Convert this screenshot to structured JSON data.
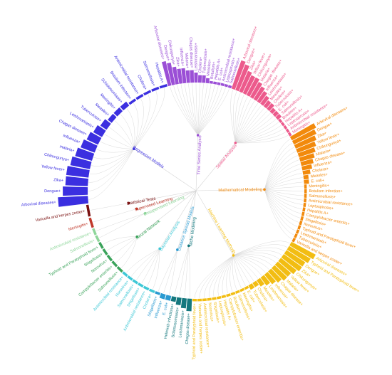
{
  "chart_data": {
    "type": "radial-dendrogram-bar",
    "title": "",
    "root_label": "",
    "methods": [
      {
        "name": "Time Series Analysis",
        "color": "#9b4fd6",
        "start": -105,
        "end": -71,
        "leaves": [
          {
            "label": "Arboviral diseases",
            "value": 10
          },
          {
            "label": "Dengue",
            "value": 9
          },
          {
            "label": "Chikungunya",
            "value": 7
          },
          {
            "label": "Zika",
            "value": 6
          },
          {
            "label": "Influenza",
            "value": 6
          },
          {
            "label": "Malaria",
            "value": 5
          },
          {
            "label": "Chagas disease",
            "value": 5
          },
          {
            "label": "Leishmaniasis",
            "value": 4
          },
          {
            "label": "Cholera",
            "value": 3
          },
          {
            "label": "Tuberculosis",
            "value": 3
          },
          {
            "label": "Measles",
            "value": 2
          },
          {
            "label": "Botulism",
            "value": 1
          },
          {
            "label": "Hepatitis A",
            "value": 1
          },
          {
            "label": "E. coli",
            "value": 1
          },
          {
            "label": "Antimicrobial resistance",
            "value": 1
          },
          {
            "label": "Leptospirosis",
            "value": 1
          },
          {
            "label": "Salmonellosis",
            "value": 1
          }
        ]
      },
      {
        "name": "Spatial Analysis",
        "color": "#ec5a8c",
        "start": -71,
        "end": -30,
        "leaves": [
          {
            "label": "Arboviral diseases",
            "value": 12
          },
          {
            "label": "Dengue",
            "value": 11
          },
          {
            "label": "Zika",
            "value": 9
          },
          {
            "label": "Yellow fever",
            "value": 8
          },
          {
            "label": "Chikungunya",
            "value": 8
          },
          {
            "label": "Malaria",
            "value": 7
          },
          {
            "label": "Chagas disease",
            "value": 6
          },
          {
            "label": "Influenza",
            "value": 5
          },
          {
            "label": "Leishmaniasis",
            "value": 4
          },
          {
            "label": "Measles",
            "value": 3
          },
          {
            "label": "Cholera",
            "value": 3
          },
          {
            "label": "Tuberculosis",
            "value": 2
          },
          {
            "label": "E. coli",
            "value": 2
          },
          {
            "label": "Salmonellosis",
            "value": 2
          },
          {
            "label": "Botulism",
            "value": 1
          },
          {
            "label": "Hepatitis A",
            "value": 1
          },
          {
            "label": "Leptospirosis",
            "value": 1
          },
          {
            "label": "Antimicrobial resistance",
            "value": 1
          },
          {
            "label": "Meningitis",
            "value": 1
          }
        ]
      },
      {
        "name": "Mathematical Modeling",
        "color": "#f28a0c",
        "start": -30,
        "end": 28,
        "leaves": [
          {
            "label": "Arboviral diseases",
            "value": 11
          },
          {
            "label": "Dengue",
            "value": 10
          },
          {
            "label": "Zika",
            "value": 9
          },
          {
            "label": "Yellow fever",
            "value": 8
          },
          {
            "label": "Chikungunya",
            "value": 7
          },
          {
            "label": "Malaria",
            "value": 6
          },
          {
            "label": "Chagas disease",
            "value": 5
          },
          {
            "label": "Influenza",
            "value": 4
          },
          {
            "label": "Cholera",
            "value": 3
          },
          {
            "label": "Measles",
            "value": 2
          },
          {
            "label": "E. coli",
            "value": 2
          },
          {
            "label": "Meningitis",
            "value": 1
          },
          {
            "label": "Botulism infection",
            "value": 1
          },
          {
            "label": "Salmonellosis",
            "value": 1
          },
          {
            "label": "Antimicrobial resistance",
            "value": 1
          },
          {
            "label": "Leptospirosis",
            "value": 1
          },
          {
            "label": "Hepatitis A",
            "value": 1
          },
          {
            "label": "Campylobacter enteritis",
            "value": 1
          },
          {
            "label": "Shigellosis",
            "value": 1
          },
          {
            "label": "Norovirus",
            "value": 1
          },
          {
            "label": "Typhoid and Paratyphoid fever",
            "value": 1
          },
          {
            "label": "Leishmaniasis",
            "value": 1
          },
          {
            "label": "Tuberculosis",
            "value": 1
          },
          {
            "label": "Varicella and herpes zoster",
            "value": 1
          }
        ]
      },
      {
        "name": "Machine Learning Methods",
        "color": "#f2bd12",
        "start": 28,
        "end": 92,
        "leaves": [
          {
            "label": "Arboviral diseases",
            "value": 11
          },
          {
            "label": "Typhoid and Paratyphoid fever",
            "value": 10
          },
          {
            "label": "Dengue",
            "value": 9
          },
          {
            "label": "Zika",
            "value": 9
          },
          {
            "label": "Chikungunya",
            "value": 8
          },
          {
            "label": "Yellow fever",
            "value": 7
          },
          {
            "label": "Malaria",
            "value": 7
          },
          {
            "label": "Chagas disease",
            "value": 6
          },
          {
            "label": "Influenza",
            "value": 5
          },
          {
            "label": "Leishmaniasis",
            "value": 4
          },
          {
            "label": "Measles",
            "value": 3
          },
          {
            "label": "Cholera",
            "value": 2
          },
          {
            "label": "Tuberculosis",
            "value": 2
          },
          {
            "label": "E. coli",
            "value": 1
          },
          {
            "label": "Meningitis",
            "value": 1
          },
          {
            "label": "Salmonellosis",
            "value": 1
          },
          {
            "label": "Botulism",
            "value": 1
          },
          {
            "label": "Campylobacter enteritis",
            "value": 1
          },
          {
            "label": "Hepatitis A",
            "value": 1
          },
          {
            "label": "Leptospirosis",
            "value": 1
          },
          {
            "label": "Shigellosis",
            "value": 1
          },
          {
            "label": "Norovirus",
            "value": 1
          },
          {
            "label": "Antimicrobial resistance",
            "value": 1
          },
          {
            "label": "Varicella and herpes zoster",
            "value": 1
          },
          {
            "label": "Typhoid and Paratyphoid fever",
            "value": 1
          }
        ]
      },
      {
        "name": "Niche Modeling",
        "color": "#14787e",
        "start": 92,
        "end": 103,
        "leaves": [
          {
            "label": "Chagas disease",
            "value": 5
          },
          {
            "label": "Leishmaniasis",
            "value": 4
          },
          {
            "label": "Schistosomiasis",
            "value": 3
          },
          {
            "label": "Helminth infections",
            "value": 2
          }
        ]
      },
      {
        "name": "Distance Spread Models",
        "color": "#2a9ad1",
        "start": 103,
        "end": 112,
        "leaves": [
          {
            "label": "E. coli",
            "value": 2
          },
          {
            "label": "Influenza",
            "value": 2
          },
          {
            "label": "Shigellosis",
            "value": 1
          }
        ]
      },
      {
        "name": "Bayesian Analysis",
        "color": "#3ec8d6",
        "start": 112,
        "end": 132,
        "leaves": [
          {
            "label": "Cholera",
            "value": 1
          },
          {
            "label": "Antimicrobial resistance",
            "value": 1
          },
          {
            "label": "Shigellosis",
            "value": 1
          },
          {
            "label": "Salmonellosis",
            "value": 1
          },
          {
            "label": "Norovirus",
            "value": 1
          },
          {
            "label": "Antimicrobial resistance",
            "value": 1
          }
        ]
      },
      {
        "name": "Neural Network",
        "color": "#3aa35a",
        "start": 132,
        "end": 152,
        "leaves": [
          {
            "label": "Salmonellosis",
            "value": 1
          },
          {
            "label": "Campylobacter enteritis",
            "value": 1
          },
          {
            "label": "Norovirus",
            "value": 1
          },
          {
            "label": "Shigellosis",
            "value": 1
          },
          {
            "label": "Typhoid and Paratyphoid fever",
            "value": 1
          }
        ]
      },
      {
        "name": "Unsupervised Learning",
        "color": "#8ed69a",
        "start": 152,
        "end": 160,
        "leaves": [
          {
            "label": "Salmonellosis",
            "value": 1
          },
          {
            "label": "Antimicrobial resistance",
            "value": 1
          }
        ]
      },
      {
        "name": "Supervised Learning",
        "color": "#c0392b",
        "start": 160,
        "end": 166,
        "leaves": [
          {
            "label": "Meningitis",
            "value": 1
          }
        ]
      },
      {
        "name": "Statistical Tests",
        "color": "#7a1010",
        "start": 166,
        "end": 173,
        "leaves": [
          {
            "label": "Varicella and herpes zoster",
            "value": 1
          }
        ]
      },
      {
        "name": "Regression Models",
        "color": "#3b2fe0",
        "start": 173,
        "end": 255,
        "leaves": [
          {
            "label": "Arboviral diseases",
            "value": 12
          },
          {
            "label": "Dengue",
            "value": 10
          },
          {
            "label": "Zika",
            "value": 9
          },
          {
            "label": "Yellow fever",
            "value": 9
          },
          {
            "label": "Chikungunya",
            "value": 8
          },
          {
            "label": "malaria",
            "value": 7
          },
          {
            "label": "Influenza",
            "value": 6
          },
          {
            "label": "Chagas disease",
            "value": 5
          },
          {
            "label": "Leishmaniasis",
            "value": 4
          },
          {
            "label": "Tuberculosis",
            "value": 3
          },
          {
            "label": "Measles",
            "value": 2
          },
          {
            "label": "Meningitis",
            "value": 2
          },
          {
            "label": "Schistosomiasis",
            "value": 2
          },
          {
            "label": "Botulism infection",
            "value": 1
          },
          {
            "label": "Antimicrobial resistance",
            "value": 1
          },
          {
            "label": "Cholera",
            "value": 1
          },
          {
            "label": "Salmonellosis",
            "value": 1
          },
          {
            "label": "Hepatitis A",
            "value": 1
          }
        ]
      }
    ]
  }
}
